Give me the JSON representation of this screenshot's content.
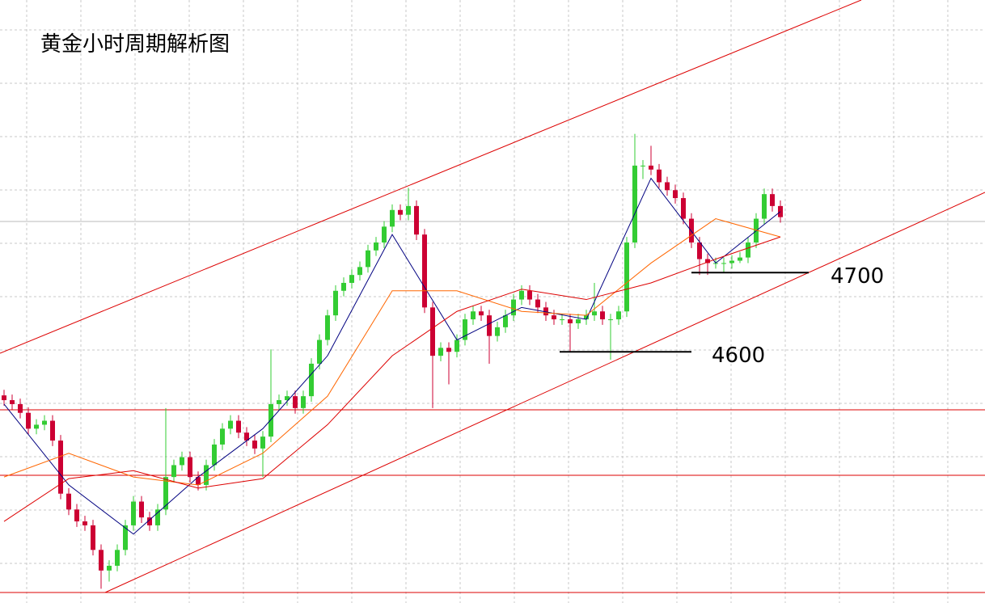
{
  "chart_data": {
    "type": "candlestick",
    "title": "黄金小时周期解析图",
    "ylim": [
      4283,
      5044
    ],
    "up_color": "#33cc33",
    "down_color": "#cc0033",
    "open": [
      4545,
      4539,
      4534,
      4523,
      4503,
      4508,
      4513,
      4488,
      4421,
      4401,
      4386,
      4381,
      4350,
      4324,
      4330,
      4350,
      4381,
      4411,
      4391,
      4381,
      4401,
      4442,
      4457,
      4467,
      4442,
      4432,
      4457,
      4483,
      4503,
      4513,
      4498,
      4488,
      4478,
      4493,
      4534,
      4539,
      4544,
      4529,
      4544,
      4585,
      4615,
      4646,
      4677,
      4687,
      4697,
      4707,
      4728,
      4738,
      4758,
      4779,
      4773,
      4784,
      4748,
      4656,
      4595,
      4605,
      4600,
      4615,
      4641,
      4651,
      4646,
      4620,
      4631,
      4646,
      4666,
      4677,
      4666,
      4656,
      4646,
      4641,
      4641,
      4636,
      4641,
      4646,
      4651,
      4641,
      4641,
      4651,
      4738,
      4835,
      4835,
      4830,
      4814,
      4804,
      4794,
      4768,
      4738,
      4717,
      4712,
      4712,
      4712,
      4715,
      4719,
      4738,
      4768,
      4799,
      4784
    ],
    "high": [
      4552,
      4546,
      4541,
      4530,
      4515,
      4520,
      4520,
      4495,
      4428,
      4408,
      4393,
      4388,
      4357,
      4337,
      4357,
      4388,
      4418,
      4418,
      4398,
      4408,
      4529,
      4464,
      4474,
      4474,
      4449,
      4464,
      4490,
      4510,
      4520,
      4520,
      4505,
      4495,
      4500,
      4603,
      4546,
      4551,
      4551,
      4551,
      4592,
      4622,
      4653,
      4684,
      4694,
      4704,
      4714,
      4735,
      4745,
      4765,
      4786,
      4786,
      4807,
      4791,
      4755,
      4663,
      4612,
      4612,
      4622,
      4648,
      4658,
      4658,
      4653,
      4638,
      4653,
      4673,
      4684,
      4684,
      4673,
      4663,
      4653,
      4648,
      4648,
      4648,
      4653,
      4687,
      4658,
      4648,
      4658,
      4745,
      4875,
      4842,
      4860,
      4837,
      4821,
      4811,
      4801,
      4775,
      4745,
      4724,
      4719,
      4719,
      4722,
      4726,
      4745,
      4775,
      4806,
      4806,
      4791
    ],
    "low": [
      4532,
      4527,
      4516,
      4496,
      4496,
      4501,
      4481,
      4414,
      4394,
      4379,
      4374,
      4343,
      4301,
      4310,
      4323,
      4343,
      4374,
      4384,
      4374,
      4374,
      4394,
      4435,
      4450,
      4435,
      4425,
      4425,
      4450,
      4476,
      4496,
      4491,
      4481,
      4471,
      4442,
      4486,
      4527,
      4532,
      4522,
      4522,
      4537,
      4578,
      4608,
      4639,
      4670,
      4680,
      4690,
      4700,
      4721,
      4731,
      4751,
      4766,
      4766,
      4741,
      4649,
      4529,
      4588,
      4559,
      4593,
      4608,
      4634,
      4639,
      4585,
      4613,
      4624,
      4639,
      4659,
      4659,
      4649,
      4639,
      4634,
      4634,
      4600,
      4629,
      4634,
      4639,
      4634,
      4590,
      4634,
      4644,
      4731,
      4818,
      4823,
      4807,
      4797,
      4787,
      4761,
      4731,
      4697,
      4697,
      4705,
      4700,
      4705,
      4712,
      4712,
      4731,
      4761,
      4777,
      4763
    ],
    "close": [
      4539,
      4534,
      4523,
      4503,
      4508,
      4513,
      4488,
      4421,
      4401,
      4386,
      4381,
      4350,
      4324,
      4330,
      4350,
      4381,
      4411,
      4391,
      4381,
      4401,
      4442,
      4457,
      4467,
      4442,
      4432,
      4457,
      4483,
      4503,
      4513,
      4498,
      4488,
      4478,
      4493,
      4534,
      4539,
      4544,
      4529,
      4544,
      4585,
      4615,
      4646,
      4677,
      4687,
      4697,
      4707,
      4728,
      4738,
      4758,
      4779,
      4773,
      4784,
      4748,
      4656,
      4595,
      4605,
      4600,
      4615,
      4641,
      4651,
      4646,
      4620,
      4631,
      4646,
      4666,
      4677,
      4666,
      4656,
      4646,
      4641,
      4641,
      4636,
      4641,
      4646,
      4651,
      4641,
      4641,
      4651,
      4738,
      4835,
      4835,
      4830,
      4814,
      4804,
      4794,
      4768,
      4738,
      4717,
      4712,
      4712,
      4712,
      4715,
      4719,
      4738,
      4768,
      4799,
      4784,
      4770
    ],
    "ma": [
      {
        "color": "#000080",
        "x": [
          0,
          8,
          16,
          24,
          32,
          40,
          48,
          56,
          64,
          72,
          80,
          88,
          96
        ],
        "values": [
          4534,
          4432,
          4370,
          4442,
          4503,
          4595,
          4748,
          4615,
          4656,
          4641,
          4819,
          4712,
          4777
        ]
      },
      {
        "color": "#ff6600",
        "x": [
          0,
          8,
          16,
          24,
          32,
          40,
          48,
          56,
          64,
          72,
          80,
          88,
          96
        ],
        "values": [
          4442,
          4472,
          4442,
          4432,
          4472,
          4544,
          4677,
          4677,
          4651,
          4646,
          4712,
          4768,
          4745
        ]
      },
      {
        "color": "#dd0000",
        "x": [
          0,
          8,
          16,
          24,
          32,
          40,
          48,
          56,
          64,
          72,
          80,
          88,
          96
        ],
        "values": [
          4386,
          4440,
          4450,
          4428,
          4440,
          4508,
          4595,
          4651,
          4679,
          4666,
          4687,
          4717,
          4745
        ]
      }
    ],
    "levels": [
      4600,
      4700
    ]
  }
}
